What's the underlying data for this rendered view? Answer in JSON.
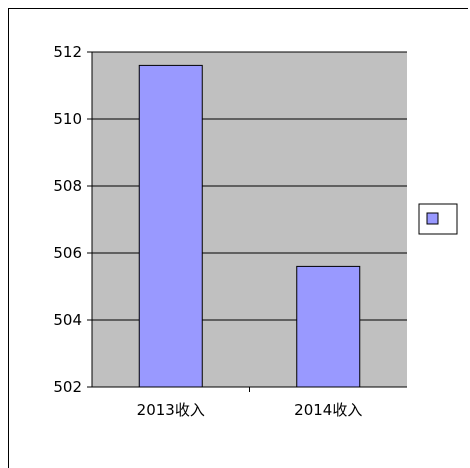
{
  "chart_data": {
    "type": "bar",
    "categories": [
      "2013收入",
      "2014收入"
    ],
    "series": [
      {
        "values": [
          511.6,
          505.6
        ]
      }
    ],
    "title": "",
    "xlabel": "",
    "ylabel": "",
    "ylim": [
      502,
      512
    ],
    "yticks": [
      "502",
      "504",
      "506",
      "508",
      "510",
      "512"
    ],
    "grid": true,
    "legend": "right",
    "colors": {
      "bar": "#9999ff",
      "plot_bg": "#c0c0c0",
      "grid": "#000000"
    }
  }
}
